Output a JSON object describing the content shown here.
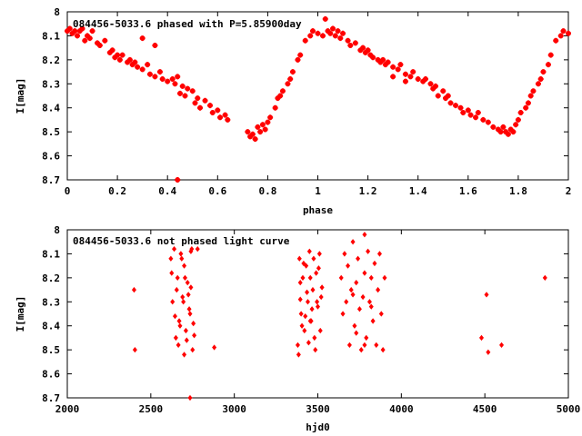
{
  "colors": {
    "points": "#ff0000",
    "axes": "#000000",
    "background": "#ffffff"
  },
  "chart_data": [
    {
      "type": "scatter",
      "title": "084456-5033.6 phased with P=5.85900day",
      "xlabel": "phase",
      "ylabel": "I[mag]",
      "xlim": [
        0,
        2
      ],
      "ylim": [
        8.7,
        8.0
      ],
      "y_inverted": true,
      "grid": false,
      "marker": "plus",
      "x_ticks": [
        "0",
        "0.2",
        "0.4",
        "0.6",
        "0.8",
        "1",
        "1.2",
        "1.4",
        "1.6",
        "1.8",
        "2"
      ],
      "y_ticks": [
        "8",
        "8.1",
        "8.2",
        "8.3",
        "8.4",
        "8.5",
        "8.6",
        "8.7"
      ],
      "x": [
        0.0,
        0.01,
        0.02,
        0.03,
        0.04,
        0.05,
        0.06,
        0.07,
        0.08,
        0.09,
        0.1,
        0.12,
        0.13,
        0.15,
        0.17,
        0.18,
        0.19,
        0.2,
        0.21,
        0.22,
        0.24,
        0.25,
        0.26,
        0.27,
        0.28,
        0.3,
        0.32,
        0.33,
        0.35,
        0.37,
        0.38,
        0.4,
        0.42,
        0.43,
        0.44,
        0.45,
        0.46,
        0.47,
        0.48,
        0.5,
        0.51,
        0.52,
        0.53,
        0.55,
        0.57,
        0.58,
        0.6,
        0.61,
        0.63,
        0.64,
        0.72,
        0.73,
        0.74,
        0.75,
        0.76,
        0.77,
        0.78,
        0.79,
        0.8,
        0.81,
        0.83,
        0.84,
        0.85,
        0.86,
        0.88,
        0.89,
        0.9,
        0.92,
        0.93,
        0.95,
        0.97,
        0.98,
        1.0,
        1.02,
        1.03,
        1.04,
        1.05,
        1.06,
        1.07,
        1.08,
        1.09,
        1.1,
        1.12,
        1.13,
        1.15,
        1.17,
        1.18,
        1.19,
        1.2,
        1.21,
        1.22,
        1.24,
        1.25,
        1.26,
        1.27,
        1.28,
        1.3,
        1.32,
        1.33,
        1.35,
        1.37,
        1.38,
        1.4,
        1.42,
        1.43,
        1.45,
        1.46,
        1.47,
        1.48,
        1.5,
        1.51,
        1.52,
        1.53,
        1.55,
        1.57,
        1.58,
        1.6,
        1.61,
        1.63,
        1.64,
        1.66,
        1.68,
        1.7,
        1.72,
        1.73,
        1.74,
        1.75,
        1.76,
        1.77,
        1.78,
        1.79,
        1.8,
        1.81,
        1.83,
        1.84,
        1.85,
        1.86,
        1.88,
        1.89,
        1.9,
        1.92,
        1.93,
        1.95,
        1.97,
        1.98,
        2.0,
        0.44,
        0.3,
        0.35,
        1.3,
        1.35
      ],
      "y": [
        8.08,
        8.07,
        8.09,
        8.08,
        8.1,
        8.08,
        8.07,
        8.12,
        8.1,
        8.11,
        8.08,
        8.13,
        8.14,
        8.12,
        8.17,
        8.16,
        8.19,
        8.18,
        8.2,
        8.18,
        8.21,
        8.2,
        8.22,
        8.21,
        8.23,
        8.24,
        8.22,
        8.26,
        8.27,
        8.25,
        8.28,
        8.29,
        8.28,
        8.3,
        8.27,
        8.34,
        8.31,
        8.35,
        8.32,
        8.33,
        8.38,
        8.36,
        8.4,
        8.37,
        8.39,
        8.42,
        8.41,
        8.44,
        8.43,
        8.45,
        8.5,
        8.52,
        8.51,
        8.53,
        8.48,
        8.5,
        8.47,
        8.49,
        8.46,
        8.44,
        8.4,
        8.36,
        8.35,
        8.33,
        8.3,
        8.28,
        8.25,
        8.2,
        8.18,
        8.12,
        8.1,
        8.08,
        8.09,
        8.1,
        8.03,
        8.08,
        8.09,
        8.07,
        8.1,
        8.08,
        8.11,
        8.09,
        8.12,
        8.14,
        8.13,
        8.16,
        8.15,
        8.17,
        8.16,
        8.18,
        8.19,
        8.2,
        8.21,
        8.2,
        8.22,
        8.21,
        8.23,
        8.24,
        8.22,
        8.26,
        8.27,
        8.25,
        8.28,
        8.29,
        8.28,
        8.3,
        8.32,
        8.31,
        8.35,
        8.33,
        8.36,
        8.35,
        8.38,
        8.39,
        8.4,
        8.42,
        8.41,
        8.43,
        8.44,
        8.42,
        8.45,
        8.46,
        8.48,
        8.49,
        8.5,
        8.48,
        8.5,
        8.51,
        8.49,
        8.5,
        8.47,
        8.45,
        8.42,
        8.4,
        8.38,
        8.35,
        8.33,
        8.3,
        8.28,
        8.25,
        8.22,
        8.18,
        8.12,
        8.1,
        8.08,
        8.09,
        8.7,
        8.11,
        8.14,
        8.27,
        8.29
      ]
    },
    {
      "type": "scatter",
      "title": "084456-5033.6 not phased light curve",
      "xlabel": "hjd0",
      "ylabel": "I[mag]",
      "xlim": [
        2000,
        5000
      ],
      "ylim": [
        8.7,
        8.0
      ],
      "y_inverted": true,
      "grid": false,
      "marker": "diamond",
      "x_ticks": [
        "2000",
        "2500",
        "3000",
        "3500",
        "4000",
        "4500",
        "5000"
      ],
      "y_ticks": [
        "8",
        "8.1",
        "8.2",
        "8.3",
        "8.4",
        "8.5",
        "8.6",
        "8.7"
      ],
      "x": [
        2400,
        2405,
        2620,
        2630,
        2640,
        2650,
        2660,
        2670,
        2680,
        2690,
        2700,
        2710,
        2720,
        2730,
        2740,
        2750,
        2625,
        2645,
        2655,
        2675,
        2685,
        2695,
        2705,
        2715,
        2725,
        2735,
        2745,
        2755,
        2665,
        2700,
        2740,
        2780,
        2880,
        2760,
        3380,
        3390,
        3400,
        3410,
        3420,
        3430,
        3440,
        3450,
        3460,
        3470,
        3480,
        3490,
        3500,
        3510,
        3520,
        3385,
        3395,
        3405,
        3415,
        3425,
        3435,
        3445,
        3455,
        3465,
        3475,
        3485,
        3495,
        3505,
        3515,
        3525,
        3395,
        3455,
        3640,
        3650,
        3660,
        3670,
        3680,
        3690,
        3700,
        3710,
        3720,
        3730,
        3740,
        3750,
        3760,
        3770,
        3780,
        3790,
        3800,
        3810,
        3820,
        3830,
        3840,
        3850,
        3860,
        3870,
        3880,
        3890,
        3900,
        3710,
        3730,
        3780,
        3820,
        4480,
        4510,
        4520,
        4600,
        4860,
        2735,
        3780
      ],
      "y": [
        8.25,
        8.5,
        8.12,
        8.3,
        8.08,
        8.45,
        8.2,
        8.38,
        8.1,
        8.28,
        8.15,
        8.42,
        8.22,
        8.33,
        8.09,
        8.5,
        8.18,
        8.36,
        8.25,
        8.4,
        8.12,
        8.3,
        8.2,
        8.46,
        8.27,
        8.35,
        8.08,
        8.39,
        8.48,
        8.52,
        8.24,
        8.08,
        8.49,
        8.44,
        8.48,
        8.12,
        8.35,
        8.2,
        8.42,
        8.15,
        8.3,
        8.09,
        8.38,
        8.25,
        8.45,
        8.18,
        8.32,
        8.1,
        8.28,
        8.52,
        8.22,
        8.4,
        8.14,
        8.36,
        8.26,
        8.47,
        8.2,
        8.33,
        8.12,
        8.5,
        8.3,
        8.16,
        8.42,
        8.24,
        8.29,
        8.38,
        8.2,
        8.35,
        8.1,
        8.3,
        8.15,
        8.48,
        8.25,
        8.05,
        8.4,
        8.22,
        8.12,
        8.33,
        8.5,
        8.28,
        8.18,
        8.45,
        8.09,
        8.3,
        8.2,
        8.38,
        8.14,
        8.48,
        8.25,
        8.1,
        8.35,
        8.5,
        8.2,
        8.27,
        8.43,
        8.02,
        8.32,
        8.45,
        8.27,
        8.51,
        8.48,
        8.2,
        8.7,
        8.48
      ]
    }
  ]
}
